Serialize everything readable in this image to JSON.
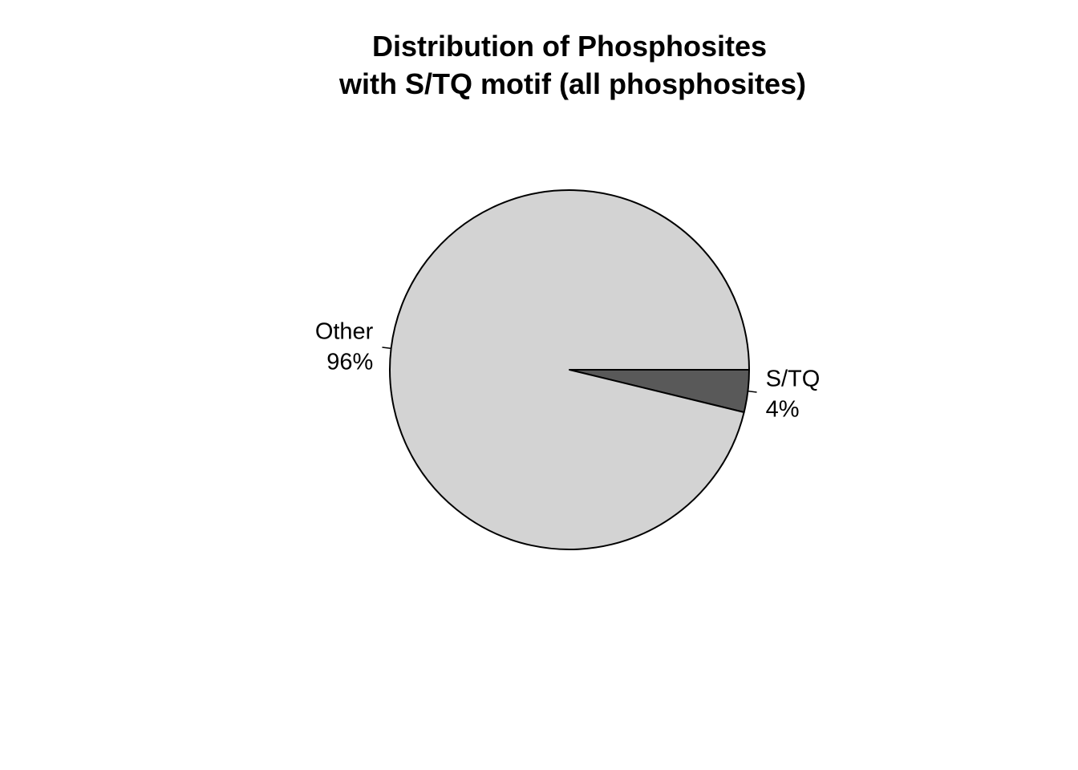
{
  "chart_data": {
    "type": "pie",
    "title_lines": [
      "Distribution of Phosphosites",
      "with S/TQ motif (all phosphosites)"
    ],
    "start_angle_deg": 0,
    "direction": "clockwise",
    "slices": [
      {
        "label": "S/TQ",
        "percent_label": "4%",
        "value": 3.8,
        "color": "#595959"
      },
      {
        "label": "Other",
        "percent_label": "96%",
        "value": 96.2,
        "color": "#d3d3d3"
      }
    ],
    "outline_color": "#000000"
  }
}
